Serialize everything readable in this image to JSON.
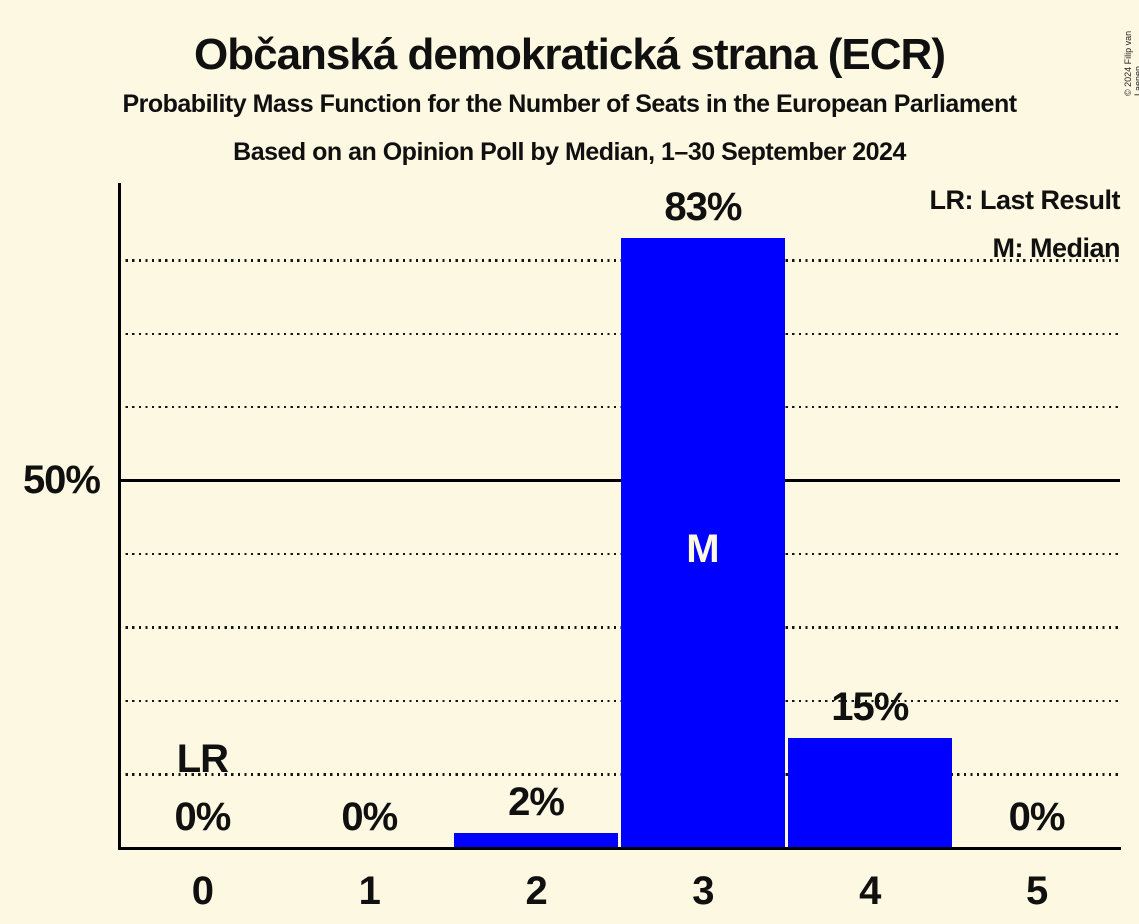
{
  "title": "Občanská demokratická strana (ECR)",
  "subtitle": "Probability Mass Function for the Number of Seats in the European Parliament",
  "subsubtitle": "Based on an Opinion Poll by Median, 1–30 September 2024",
  "copyright": "© 2024 Filip van Laenen",
  "legend": {
    "last_result": "LR: Last Result",
    "median": "M: Median"
  },
  "y_axis": {
    "label_50": "50%"
  },
  "colors": {
    "background": "#FDF8E1",
    "bar": "#0000FF",
    "text": "#101010",
    "bar_inner_label": "#FDF8E1",
    "gridline": "#151515"
  },
  "chart_data": {
    "type": "bar",
    "title": "Občanská demokratická strana (ECR) — Probability Mass Function for the Number of Seats in the European Parliament",
    "xlabel": "",
    "ylabel": "",
    "categories": [
      "0",
      "1",
      "2",
      "3",
      "4",
      "5"
    ],
    "values": [
      0,
      0,
      2,
      83,
      15,
      0
    ],
    "value_labels": [
      "0%",
      "0%",
      "2%",
      "83%",
      "15%",
      "0%"
    ],
    "ylim": [
      0,
      90.5
    ],
    "grid": "horizontal-dotted",
    "gridlines_pct": [
      10,
      20,
      30,
      40,
      50,
      60,
      70,
      80
    ],
    "solid_gridline_pct": 50,
    "y_tick_labels": [
      "50%"
    ],
    "legend_position": "top-right",
    "legend_entries": [
      "LR: Last Result",
      "M: Median"
    ],
    "annotations": {
      "last_result": {
        "seat": "0",
        "label": "LR"
      },
      "median": {
        "seat": "3",
        "label": "M"
      }
    }
  }
}
